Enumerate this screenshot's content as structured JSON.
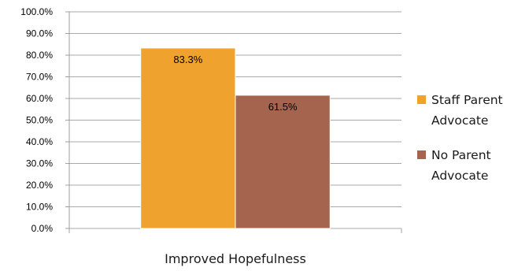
{
  "chart_data": {
    "type": "bar",
    "categories": [
      "Improved Hopefulness"
    ],
    "series": [
      {
        "name": "Staff Parent Advocate",
        "legend_lines": [
          "Staff Parent",
          "Advocate"
        ],
        "values": [
          83.3
        ],
        "color": "#f0a22e"
      },
      {
        "name": "No Parent Advocate",
        "legend_lines": [
          "No Parent",
          "Advocate"
        ],
        "values": [
          61.5
        ],
        "color": "#a5644e"
      }
    ],
    "data_labels": [
      "83.3%",
      "61.5%"
    ],
    "ylim": [
      0,
      100
    ],
    "y_ticks": [
      "0.0%",
      "10.0%",
      "20.0%",
      "30.0%",
      "40.0%",
      "50.0%",
      "60.0%",
      "70.0%",
      "80.0%",
      "90.0%",
      "100.0%"
    ],
    "gridlines": true,
    "legend_position": "right",
    "title": "",
    "xlabel": "",
    "ylabel": ""
  }
}
